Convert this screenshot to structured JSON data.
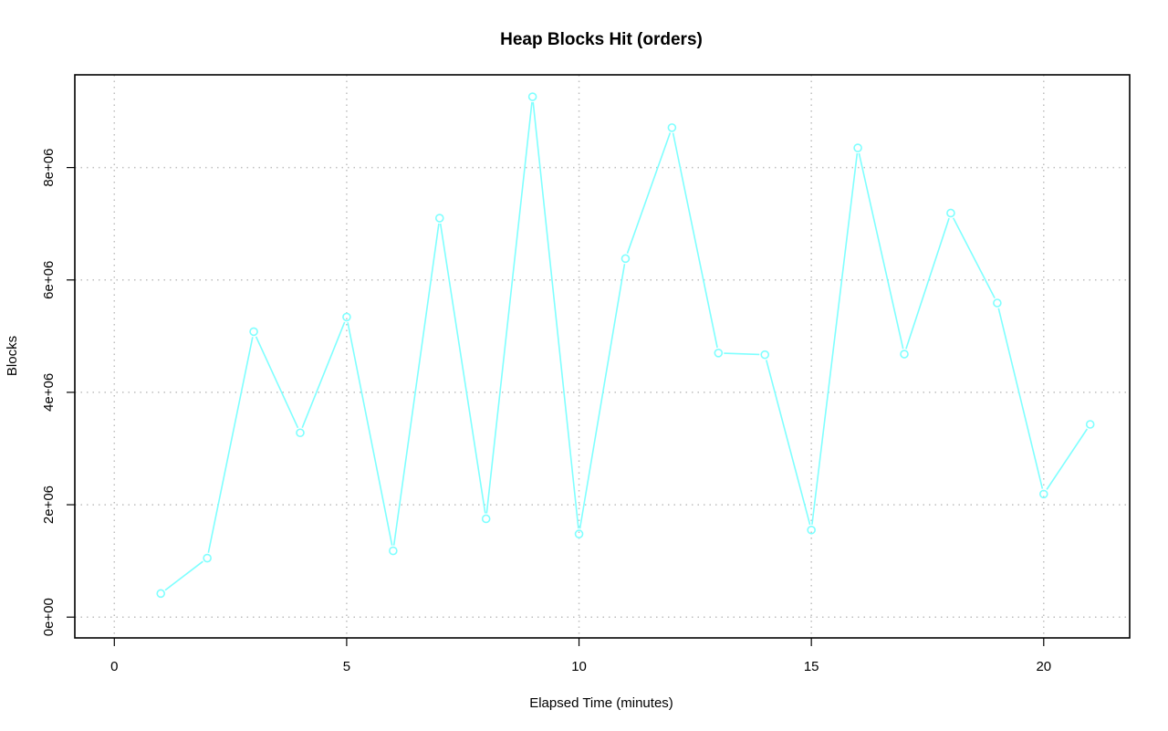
{
  "chart_data": {
    "type": "line",
    "title": "Heap Blocks Hit (orders)",
    "xlabel": "Elapsed Time (minutes)",
    "ylabel": "Blocks",
    "xlim": [
      -0.85,
      21.85
    ],
    "ylim": [
      -370000,
      9650000
    ],
    "x_ticks": [
      0,
      5,
      10,
      15,
      20
    ],
    "x_tick_labels": [
      "0",
      "5",
      "10",
      "15",
      "20"
    ],
    "y_ticks": [
      0,
      2000000,
      4000000,
      6000000,
      8000000
    ],
    "y_tick_labels": [
      "0e+00",
      "2e+06",
      "4e+06",
      "6e+06",
      "8e+06"
    ],
    "grid": true,
    "legend": "none",
    "series": [
      {
        "color": "#7fffff",
        "marker": "circle-open",
        "x": [
          1,
          2,
          3,
          4,
          5,
          6,
          7,
          8,
          9,
          10,
          11,
          12,
          13,
          14,
          15,
          16,
          17,
          18,
          19,
          20,
          21
        ],
        "y": [
          420000,
          1050000,
          5080000,
          3280000,
          5340000,
          1180000,
          7100000,
          1750000,
          9260000,
          1480000,
          6380000,
          8710000,
          4700000,
          4670000,
          1550000,
          8350000,
          4680000,
          7190000,
          5590000,
          2190000,
          3430000
        ]
      }
    ]
  }
}
